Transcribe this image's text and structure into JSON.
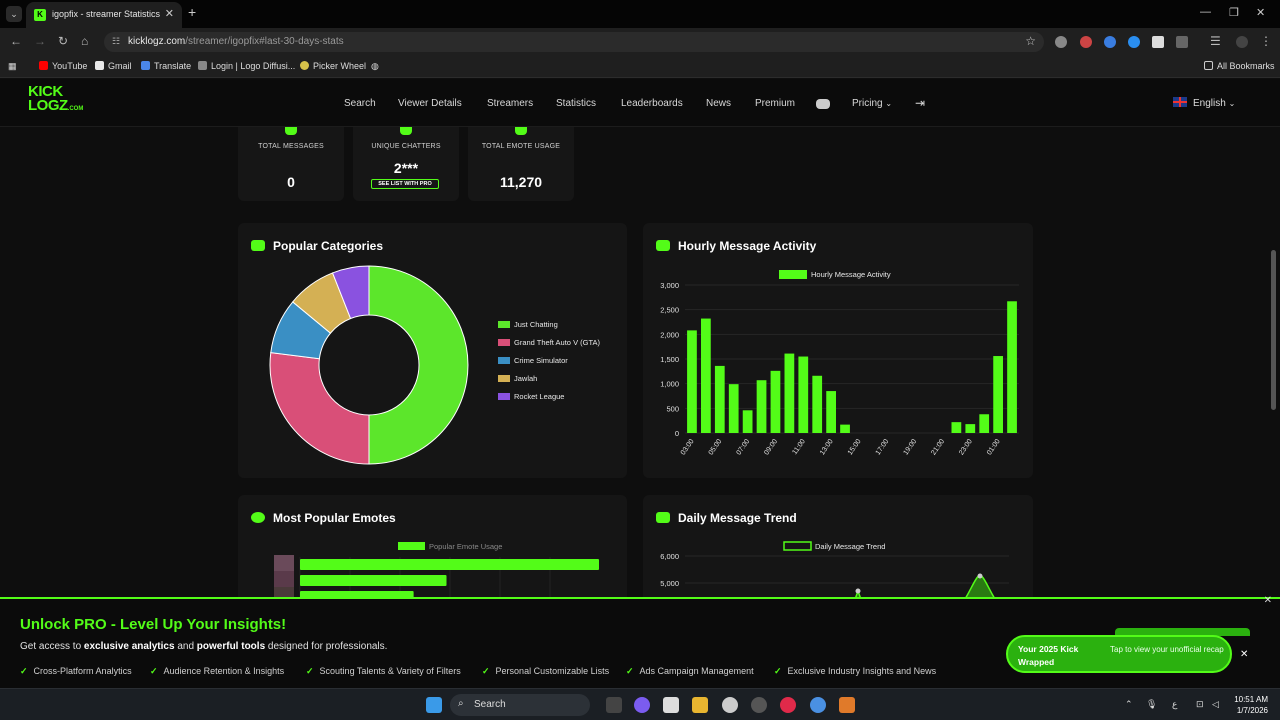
{
  "browser": {
    "tab_title": "igopfix - streamer Statistics",
    "url_host": "kicklogz.com",
    "url_path": "/streamer/igopfix#last-30-days-stats",
    "bookmarks": [
      "YouTube",
      "Gmail",
      "Translate",
      "Login | Logo Diffusi...",
      "Picker Wheel"
    ],
    "all_bookmarks": "All Bookmarks"
  },
  "site": {
    "logo_line1": "KICK",
    "logo_line2": "LOGZ",
    "logo_suffix": ".COM",
    "nav": [
      "Search",
      "Viewer Details",
      "Streamers",
      "Statistics",
      "Leaderboards",
      "News",
      "Premium"
    ],
    "pricing": "Pricing",
    "language": "English"
  },
  "stats": [
    {
      "label": "TOTAL MESSAGES",
      "value": "0"
    },
    {
      "label": "UNIQUE CHATTERS",
      "value": "2***",
      "button": "SEE LIST WITH PRO"
    },
    {
      "label": "TOTAL EMOTE USAGE",
      "value": "11,270"
    }
  ],
  "panels": {
    "categories_title": "Popular Categories",
    "hourly_title": "Hourly Message Activity",
    "emotes_title": "Most Popular Emotes",
    "daily_title": "Daily Message Trend"
  },
  "chart_data": [
    {
      "type": "pie",
      "title": "Popular Categories",
      "categories": [
        "Just Chatting",
        "Grand Theft Auto V (GTA)",
        "Crime Simulator",
        "Jawlah",
        "Rocket League"
      ],
      "values": [
        50,
        27,
        9,
        8,
        6
      ],
      "colors": [
        "#5ce62b",
        "#d94f78",
        "#3a8fc4",
        "#d4b054",
        "#8a52e0"
      ],
      "legend": "right"
    },
    {
      "type": "bar",
      "title": "Hourly Message Activity",
      "series": [
        {
          "name": "Hourly Message Activity",
          "values": [
            2080,
            2320,
            1360,
            990,
            460,
            1070,
            1260,
            1610,
            1550,
            1160,
            850,
            170,
            0,
            0,
            0,
            0,
            0,
            0,
            0,
            220,
            180,
            380,
            1560,
            2670
          ]
        }
      ],
      "x": [
        "03:00",
        "04:00",
        "05:00",
        "06:00",
        "07:00",
        "08:00",
        "09:00",
        "10:00",
        "11:00",
        "12:00",
        "13:00",
        "14:00",
        "15:00",
        "16:00",
        "17:00",
        "18:00",
        "19:00",
        "20:00",
        "21:00",
        "22:00",
        "23:00",
        "00:00",
        "01:00",
        "02:00"
      ],
      "tick_labels": [
        "03:00",
        "05:00",
        "07:00",
        "09:00",
        "11:00",
        "13:00",
        "15:00",
        "17:00",
        "19:00",
        "21:00",
        "23:00",
        "01:00"
      ],
      "y_ticks": [
        "0",
        "500",
        "1,000",
        "1,500",
        "2,000",
        "2,500",
        "3,000"
      ],
      "ylim": [
        0,
        3000
      ],
      "color": "#53fc18",
      "legend": "top"
    },
    {
      "type": "bar",
      "title": "Most Popular Emotes",
      "series": [
        {
          "name": "Popular Emote Usage",
          "values": [
            100,
            49,
            38
          ]
        }
      ],
      "color": "#53fc18",
      "legend": "top"
    },
    {
      "type": "line",
      "title": "Daily Message Trend",
      "series": [
        {
          "name": "Daily Message Trend"
        }
      ],
      "y_ticks": [
        "6,000",
        "5,000"
      ],
      "legend": "top"
    }
  ],
  "banner": {
    "title": "Unlock PRO - Level Up Your Insights!",
    "sub_pre": "Get access to ",
    "sub_b1": "exclusive analytics",
    "sub_mid": " and ",
    "sub_b2": "powerful tools",
    "sub_post": " designed for professionals.",
    "features": [
      "Cross-Platform Analytics",
      "Audience Retention & Insights",
      "Scouting Talents & Variety of Filters",
      "Personal Customizable Lists",
      "Ads Campaign Management",
      "Exclusive Industry Insights and News"
    ]
  },
  "wrapped": {
    "title": "Your 2025 Kick Wrapped",
    "text": "Tap to view your unofficial recap"
  },
  "taskbar": {
    "search": "Search",
    "time": "10:51 AM",
    "date": "1/7/2026"
  }
}
